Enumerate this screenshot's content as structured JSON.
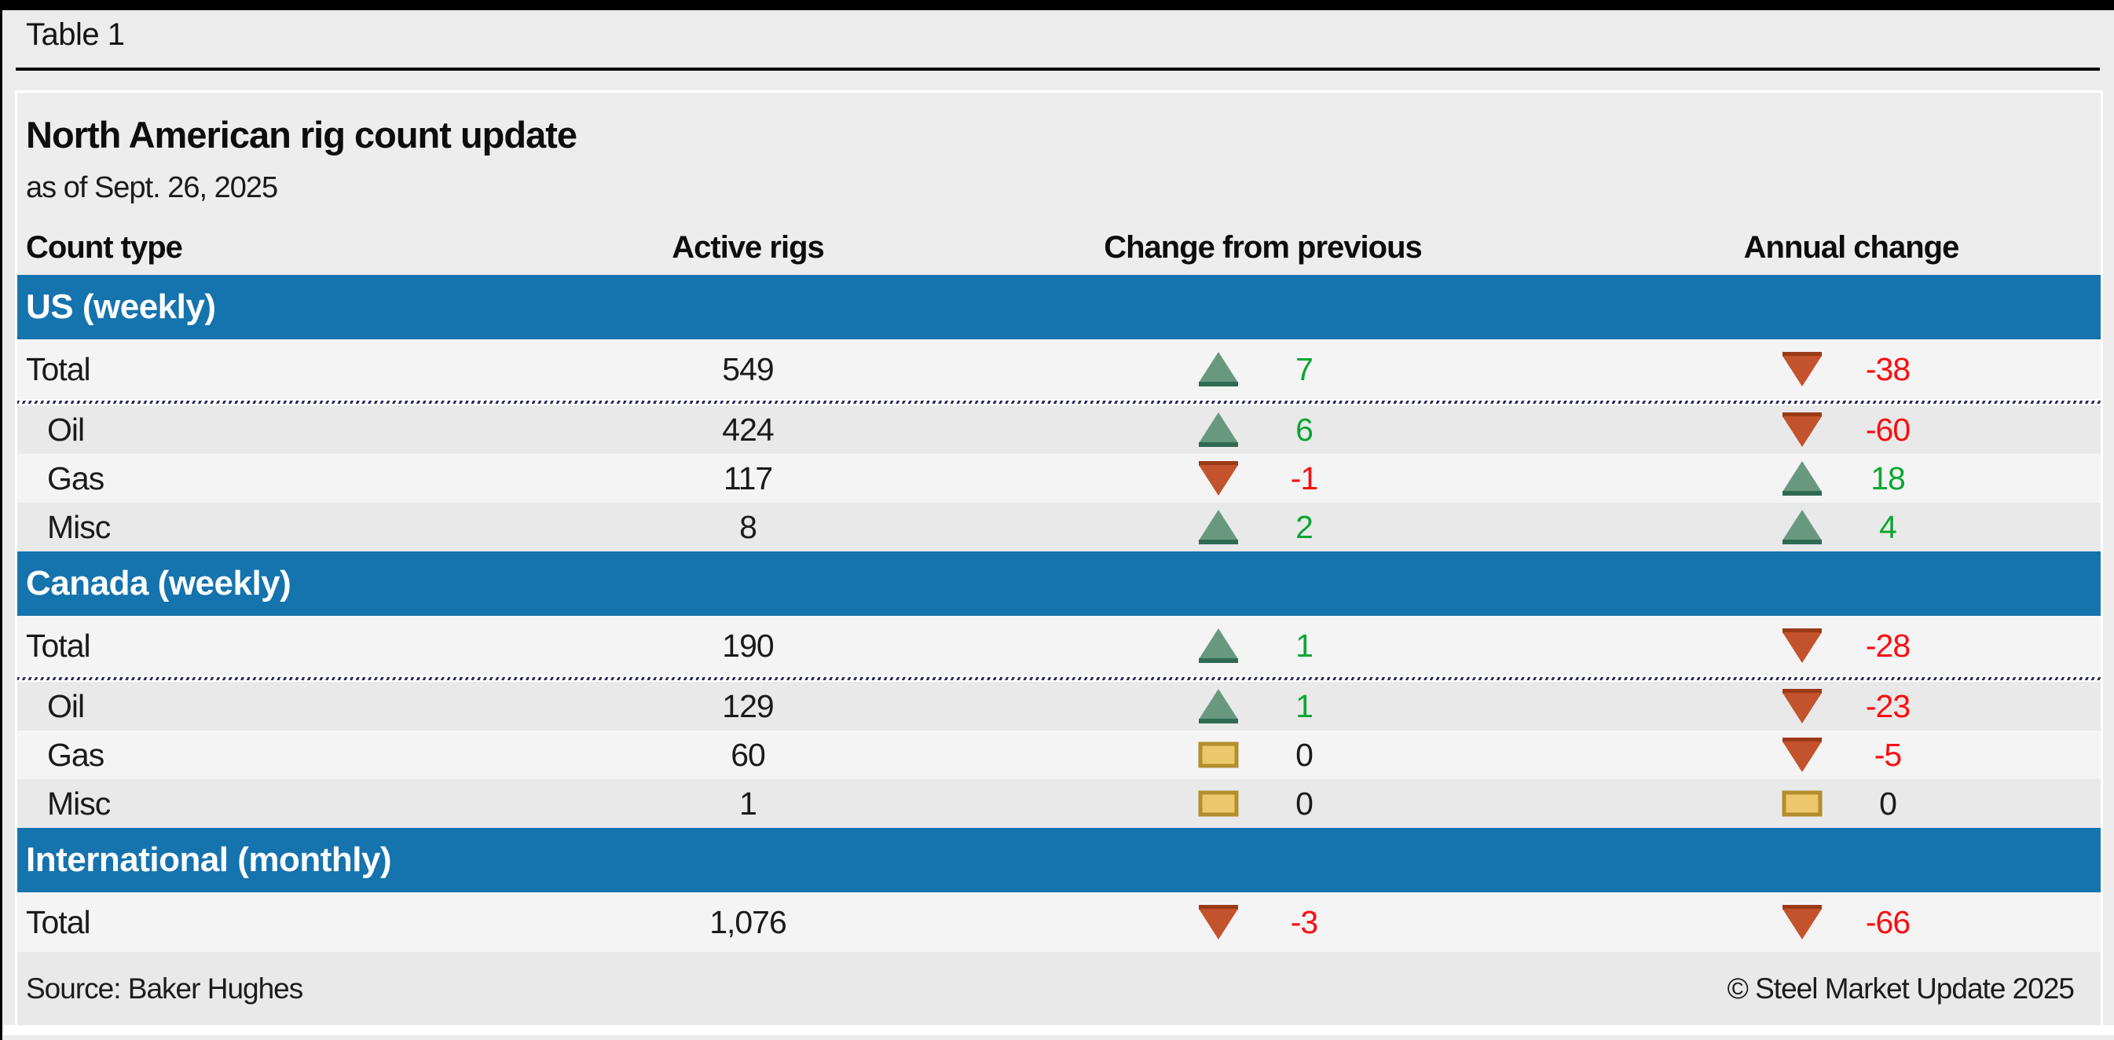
{
  "window": {
    "tab_label": "Table 1"
  },
  "table": {
    "title": "North American rig count update",
    "subtitle": "as of Sept. 26, 2025",
    "columns": {
      "count_type": "Count type",
      "active_rigs": "Active rigs",
      "change_prev": "Change from previous",
      "annual_change": "Annual change"
    },
    "sections": [
      {
        "label": "US (weekly)",
        "rows": [
          {
            "label": "Total",
            "active": "549",
            "prev": {
              "dir": "up",
              "value": "7"
            },
            "annual": {
              "dir": "down",
              "value": "-38"
            }
          },
          {
            "label": "Oil",
            "active": "424",
            "prev": {
              "dir": "up",
              "value": "6"
            },
            "annual": {
              "dir": "down",
              "value": "-60"
            }
          },
          {
            "label": "Gas",
            "active": "117",
            "prev": {
              "dir": "down",
              "value": "-1"
            },
            "annual": {
              "dir": "up",
              "value": "18"
            }
          },
          {
            "label": "Misc",
            "active": "8",
            "prev": {
              "dir": "up",
              "value": "2"
            },
            "annual": {
              "dir": "up",
              "value": "4"
            }
          }
        ]
      },
      {
        "label": "Canada (weekly)",
        "rows": [
          {
            "label": "Total",
            "active": "190",
            "prev": {
              "dir": "up",
              "value": "1"
            },
            "annual": {
              "dir": "down",
              "value": "-28"
            }
          },
          {
            "label": "Oil",
            "active": "129",
            "prev": {
              "dir": "up",
              "value": "1"
            },
            "annual": {
              "dir": "down",
              "value": "-23"
            }
          },
          {
            "label": "Gas",
            "active": "60",
            "prev": {
              "dir": "flat",
              "value": "0"
            },
            "annual": {
              "dir": "down",
              "value": "-5"
            }
          },
          {
            "label": "Misc",
            "active": "1",
            "prev": {
              "dir": "flat",
              "value": "0"
            },
            "annual": {
              "dir": "flat",
              "value": "0"
            }
          }
        ]
      },
      {
        "label": "International (monthly)",
        "rows": [
          {
            "label": "Total",
            "active": "1,076",
            "prev": {
              "dir": "down",
              "value": "-3"
            },
            "annual": {
              "dir": "down",
              "value": "-66"
            }
          }
        ]
      }
    ],
    "footer": {
      "source": "Source: Baker Hughes",
      "copyright": "© Steel Market Update 2025"
    }
  },
  "icons": {
    "up": "up-triangle-icon",
    "down": "down-triangle-icon",
    "flat": "flat-dash-icon"
  },
  "colors": {
    "section_bar_blue": "#1573ae",
    "row_light": "#f4f4f5",
    "row_dark": "#e9e9ea",
    "positive_green": "#0aa631",
    "negative_red": "#fb0d10",
    "neutral_black": "#1a1a1a",
    "up_triangle_fill": "#68997f",
    "up_triangle_base": "#2f6b52",
    "down_triangle_fill": "#c3532c",
    "down_triangle_top": "#9a3a16",
    "flat_dash_fill": "#edc76c",
    "flat_dash_border": "#b28e2e",
    "dashed_separator_navy": "#2a2a5c",
    "chrome_black": "#000000",
    "page_gray": "#ececec"
  },
  "chart_data": {
    "type": "table",
    "title": "North American rig count update",
    "subtitle": "as of Sept. 26, 2025",
    "columns": [
      "Count type",
      "Active rigs",
      "Change from previous",
      "Annual change"
    ],
    "rows": [
      {
        "section": "US (weekly)",
        "count_type": "Total",
        "active_rigs": 549,
        "change_from_previous": 7,
        "annual_change": -38
      },
      {
        "section": "US (weekly)",
        "count_type": "Oil",
        "active_rigs": 424,
        "change_from_previous": 6,
        "annual_change": -60
      },
      {
        "section": "US (weekly)",
        "count_type": "Gas",
        "active_rigs": 117,
        "change_from_previous": -1,
        "annual_change": 18
      },
      {
        "section": "US (weekly)",
        "count_type": "Misc",
        "active_rigs": 8,
        "change_from_previous": 2,
        "annual_change": 4
      },
      {
        "section": "Canada (weekly)",
        "count_type": "Total",
        "active_rigs": 190,
        "change_from_previous": 1,
        "annual_change": -28
      },
      {
        "section": "Canada (weekly)",
        "count_type": "Oil",
        "active_rigs": 129,
        "change_from_previous": 1,
        "annual_change": -23
      },
      {
        "section": "Canada (weekly)",
        "count_type": "Gas",
        "active_rigs": 60,
        "change_from_previous": 0,
        "annual_change": -5
      },
      {
        "section": "Canada (weekly)",
        "count_type": "Misc",
        "active_rigs": 1,
        "change_from_previous": 0,
        "annual_change": 0
      },
      {
        "section": "International (monthly)",
        "count_type": "Total",
        "active_rigs": 1076,
        "change_from_previous": -3,
        "annual_change": -66
      }
    ],
    "source": "Source: Baker Hughes",
    "notes": "Icons: green up-triangle = increase, red down-triangle = decrease, yellow dash = no change"
  }
}
